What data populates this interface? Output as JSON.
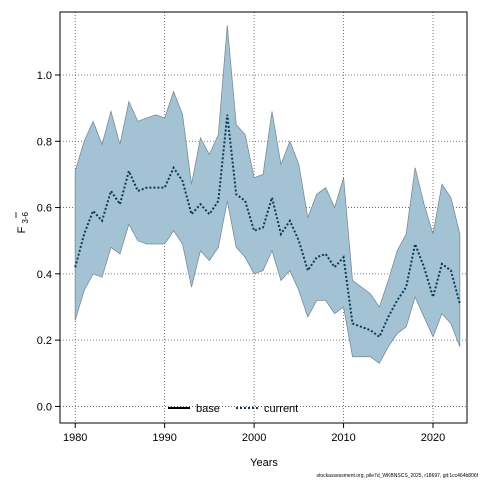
{
  "chart_data": {
    "type": "area",
    "xlabel": "Years",
    "ylabel": "F",
    "ylabel_sub": "3-6",
    "xlim": [
      1978.3,
      2023.8
    ],
    "ylim": [
      -0.05,
      1.19
    ],
    "xticks": [
      1980,
      1990,
      2000,
      2010,
      2020
    ],
    "xtick_labels": [
      "1980",
      "1990",
      "2000",
      "2010",
      "2020"
    ],
    "yticks": [
      0.0,
      0.2,
      0.4,
      0.6,
      0.8,
      1.0
    ],
    "ytick_labels": [
      "0.0",
      "0.2",
      "0.4",
      "0.6",
      "0.8",
      "1.0"
    ],
    "grid": true,
    "legend": {
      "position": "bottom-center",
      "entries": [
        {
          "name": "base",
          "color": "#000000",
          "style": "solid"
        },
        {
          "name": "current",
          "color": "#0b3a54",
          "style": "dotted"
        }
      ]
    },
    "x": [
      1980,
      1981,
      1982,
      1983,
      1984,
      1985,
      1986,
      1987,
      1988,
      1989,
      1990,
      1991,
      1992,
      1993,
      1994,
      1995,
      1996,
      1997,
      1998,
      1999,
      2000,
      2001,
      2002,
      2003,
      2004,
      2005,
      2006,
      2007,
      2008,
      2009,
      2010,
      2011,
      2012,
      2013,
      2014,
      2015,
      2016,
      2017,
      2018,
      2019,
      2020,
      2021,
      2022,
      2023
    ],
    "series": [
      {
        "name": "current",
        "values": [
          0.42,
          0.52,
          0.59,
          0.56,
          0.65,
          0.61,
          0.71,
          0.65,
          0.66,
          0.66,
          0.66,
          0.72,
          0.68,
          0.58,
          0.61,
          0.58,
          0.62,
          0.88,
          0.64,
          0.62,
          0.53,
          0.54,
          0.63,
          0.52,
          0.56,
          0.5,
          0.41,
          0.45,
          0.46,
          0.42,
          0.45,
          0.25,
          0.24,
          0.23,
          0.21,
          0.27,
          0.32,
          0.36,
          0.49,
          0.42,
          0.33,
          0.43,
          0.41,
          0.31
        ],
        "lower": [
          0.26,
          0.35,
          0.4,
          0.39,
          0.48,
          0.46,
          0.55,
          0.5,
          0.49,
          0.49,
          0.49,
          0.53,
          0.49,
          0.36,
          0.47,
          0.44,
          0.48,
          0.62,
          0.48,
          0.45,
          0.4,
          0.41,
          0.47,
          0.38,
          0.41,
          0.35,
          0.27,
          0.32,
          0.32,
          0.28,
          0.3,
          0.15,
          0.15,
          0.15,
          0.13,
          0.18,
          0.22,
          0.24,
          0.33,
          0.27,
          0.21,
          0.28,
          0.25,
          0.18
        ],
        "upper": [
          0.71,
          0.8,
          0.86,
          0.79,
          0.89,
          0.79,
          0.92,
          0.86,
          0.87,
          0.88,
          0.87,
          0.95,
          0.88,
          0.67,
          0.81,
          0.76,
          0.82,
          1.15,
          0.85,
          0.82,
          0.69,
          0.7,
          0.89,
          0.73,
          0.8,
          0.73,
          0.57,
          0.64,
          0.66,
          0.6,
          0.69,
          0.38,
          0.36,
          0.34,
          0.3,
          0.38,
          0.47,
          0.52,
          0.72,
          0.61,
          0.52,
          0.67,
          0.63,
          0.52
        ]
      }
    ],
    "band_color": "#a3c3d5",
    "band_edge_color": "#7a8c96",
    "footnote": "stockassessment.org, pile7d_WKBNSCS_2025, r18697, git:1cc464b806f"
  }
}
